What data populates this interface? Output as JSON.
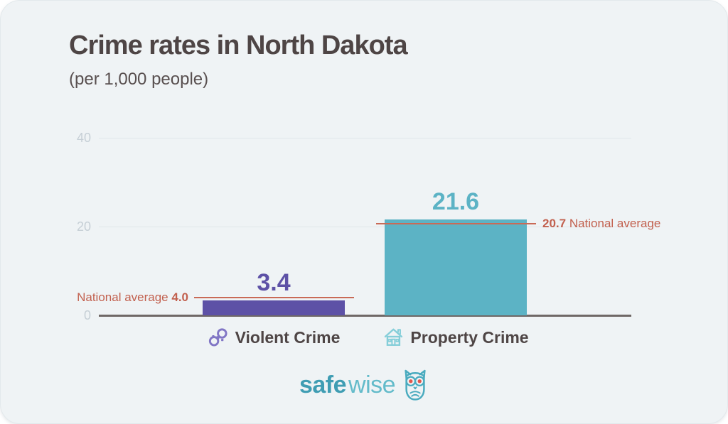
{
  "header": {
    "title": "Crime rates in North Dakota",
    "subtitle": "(per 1,000 people)"
  },
  "chart_data": {
    "type": "bar",
    "title": "Crime rates in North Dakota",
    "subtitle": "(per 1,000 people)",
    "categories": [
      "Violent Crime",
      "Property Crime"
    ],
    "values": [
      3.4,
      21.6
    ],
    "value_labels": [
      "3.4",
      "21.6"
    ],
    "national_averages": [
      4.0,
      20.7
    ],
    "annotations": [
      {
        "text": "National average",
        "value": "4.0",
        "position": "left-of-violent-bar"
      },
      {
        "value": "20.7",
        "text": "National average",
        "position": "right-of-property-bar"
      }
    ],
    "y_ticks": [
      0,
      20,
      40
    ],
    "ylim": [
      0,
      40
    ],
    "xlabel": "",
    "ylabel": "",
    "grid": "horizontal",
    "legend": "none",
    "bar_colors": [
      "#5d51a6",
      "#5cb3c5"
    ],
    "avg_line_color": "#c96a56",
    "avg_text_color": "#c2604e",
    "category_icons": [
      "handcuffs-icon",
      "house-icon"
    ]
  },
  "logo": {
    "brand_bold": "safe",
    "brand_light": "wise",
    "icon": "owl-icon",
    "color_bold": "#3f9db3",
    "color_light": "#63bbca"
  },
  "colors": {
    "card_background": "#eff3f5",
    "title_text": "#4e4545",
    "tick_text": "#c6cfd6",
    "gridline": "#e0e6ea",
    "axis_line": "#6f6866"
  }
}
